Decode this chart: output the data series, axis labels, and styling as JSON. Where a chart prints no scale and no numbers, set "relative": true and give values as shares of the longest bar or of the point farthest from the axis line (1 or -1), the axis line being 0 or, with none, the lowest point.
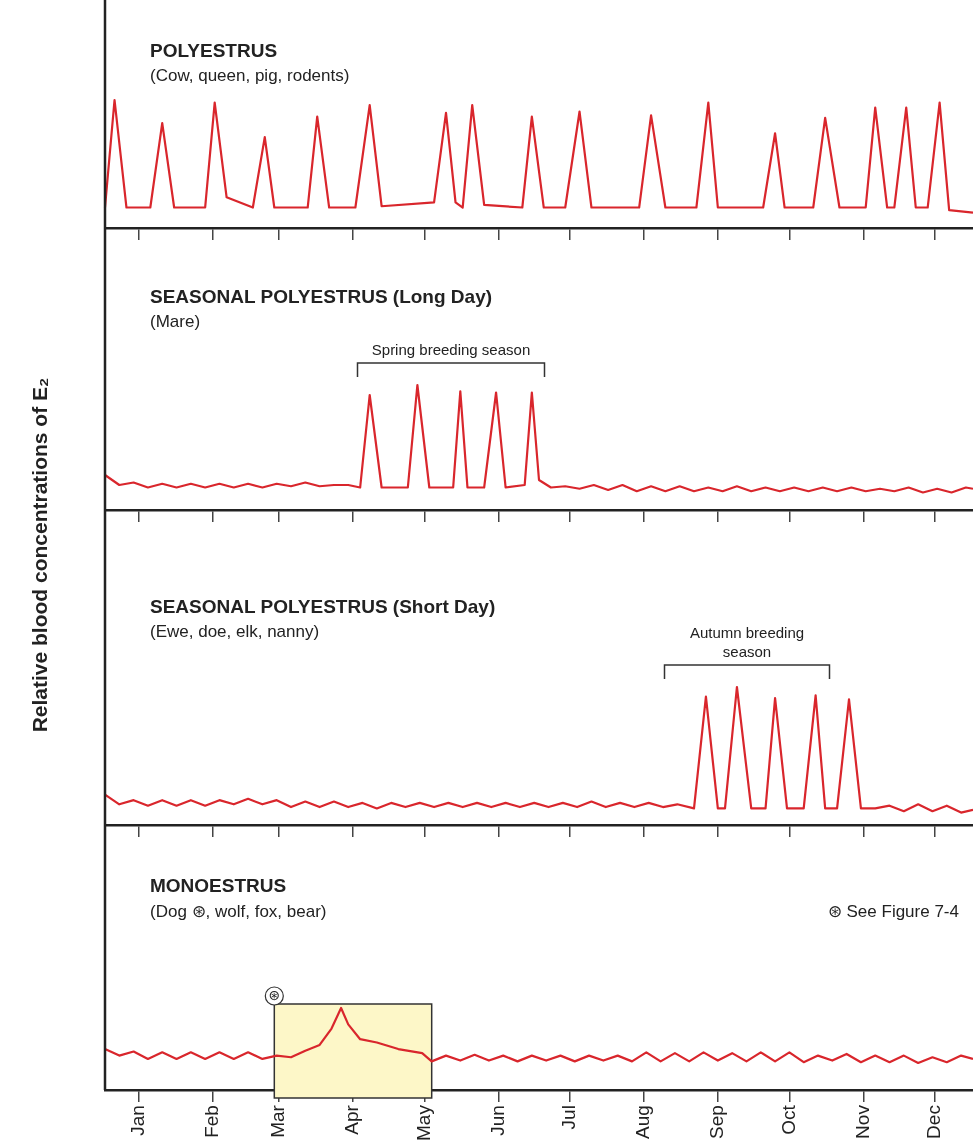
{
  "chart_data": [
    {
      "type": "line",
      "title": "POLYESTRUS",
      "subtitle": "(Cow, queen, pig, rodents)",
      "relative": true,
      "marker": "none",
      "tick_labels": false,
      "xlim": [
        "--01-01",
        "--12-31"
      ],
      "xticks": [
        {
          "value": "--01-15",
          "label": null
        },
        {
          "value": "--02-15",
          "label": null
        },
        {
          "value": "--03-15",
          "label": null
        },
        {
          "value": "--04-15",
          "label": null
        },
        {
          "value": "--05-15",
          "label": null
        },
        {
          "value": "--06-15",
          "label": null
        },
        {
          "value": "--07-15",
          "label": null
        },
        {
          "value": "--08-15",
          "label": null
        },
        {
          "value": "--09-15",
          "label": null
        },
        {
          "value": "--10-15",
          "label": null
        },
        {
          "value": "--11-15",
          "label": null
        },
        {
          "value": "--12-15",
          "label": null
        }
      ],
      "series": [
        {
          "color": "#d9262c",
          "x": [
            "--01-01",
            "--01-05",
            "--01-10",
            "--01-20",
            "--01-25",
            "--01-30",
            "--02-12",
            "--02-16",
            "--02-21",
            "--03-04",
            "--03-09",
            "--03-13",
            "--03-27",
            "--03-31",
            "--04-05",
            "--04-16",
            "--04-22",
            "--04-27",
            "--05-19",
            "--05-24",
            "--05-28",
            "--05-31",
            "--06-04",
            "--06-09",
            "--06-25",
            "--06-29",
            "--07-04",
            "--07-13",
            "--07-19",
            "--07-24",
            "--08-13",
            "--08-18",
            "--08-24",
            "--09-06",
            "--09-11",
            "--09-15",
            "--10-04",
            "--10-09",
            "--10-13",
            "--10-25",
            "--10-30",
            "--11-05",
            "--11-16",
            "--11-20",
            "--11-25",
            "--11-28",
            "--12-03",
            "--12-07",
            "--12-12",
            "--12-17",
            "--12-21",
            "--12-31"
          ],
          "values": [
            0.16,
            1.0,
            0.16,
            0.16,
            0.82,
            0.16,
            0.16,
            0.98,
            0.24,
            0.16,
            0.71,
            0.16,
            0.16,
            0.87,
            0.16,
            0.16,
            0.96,
            0.17,
            0.2,
            0.9,
            0.2,
            0.16,
            0.96,
            0.18,
            0.16,
            0.87,
            0.16,
            0.16,
            0.91,
            0.16,
            0.16,
            0.88,
            0.16,
            0.16,
            0.98,
            0.16,
            0.16,
            0.74,
            0.16,
            0.16,
            0.86,
            0.16,
            0.16,
            0.94,
            0.16,
            0.16,
            0.94,
            0.16,
            0.16,
            0.98,
            0.14,
            0.12
          ]
        }
      ]
    },
    {
      "type": "line",
      "title": "SEASONAL POLYESTRUS (Long Day)",
      "subtitle": "(Mare)",
      "relative": true,
      "marker": "none",
      "tick_labels": false,
      "xlim": [
        "--01-01",
        "--12-31"
      ],
      "xticks": [
        {
          "value": "--01-15",
          "label": null
        },
        {
          "value": "--02-15",
          "label": null
        },
        {
          "value": "--03-15",
          "label": null
        },
        {
          "value": "--04-15",
          "label": null
        },
        {
          "value": "--05-15",
          "label": null
        },
        {
          "value": "--06-15",
          "label": null
        },
        {
          "value": "--07-15",
          "label": null
        },
        {
          "value": "--08-15",
          "label": null
        },
        {
          "value": "--09-15",
          "label": null
        },
        {
          "value": "--10-15",
          "label": null
        },
        {
          "value": "--11-15",
          "label": null
        },
        {
          "value": "--12-15",
          "label": null
        }
      ],
      "annotations": [
        "Spring breeding season"
      ],
      "series": [
        {
          "color": "#d9262c",
          "x": [
            "--01-01",
            "--01-07",
            "--01-13",
            "--01-19",
            "--01-25",
            "--01-31",
            "--02-06",
            "--02-12",
            "--02-18",
            "--02-24",
            "--03-02",
            "--03-08",
            "--03-14",
            "--03-20",
            "--03-26",
            "--04-01",
            "--04-07",
            "--04-13",
            "--04-18",
            "--04-22",
            "--04-27",
            "--05-08",
            "--05-12",
            "--05-17",
            "--05-27",
            "--05-30",
            "--06-02",
            "--06-09",
            "--06-14",
            "--06-18",
            "--06-26",
            "--06-29",
            "--07-02",
            "--07-07",
            "--07-13",
            "--07-19",
            "--07-25",
            "--07-31",
            "--08-06",
            "--08-12",
            "--08-18",
            "--08-24",
            "--08-30",
            "--09-05",
            "--09-11",
            "--09-17",
            "--09-23",
            "--09-29",
            "--10-05",
            "--10-11",
            "--10-17",
            "--10-23",
            "--10-29",
            "--11-04",
            "--11-10",
            "--11-16",
            "--11-22",
            "--11-28",
            "--12-04",
            "--12-10",
            "--12-16",
            "--12-22",
            "--12-28",
            "--12-31"
          ],
          "values": [
            0.28,
            0.2,
            0.22,
            0.18,
            0.21,
            0.18,
            0.21,
            0.18,
            0.21,
            0.18,
            0.21,
            0.18,
            0.21,
            0.19,
            0.22,
            0.19,
            0.2,
            0.2,
            0.18,
            0.92,
            0.18,
            0.18,
            1.0,
            0.18,
            0.18,
            0.95,
            0.18,
            0.18,
            0.94,
            0.18,
            0.2,
            0.94,
            0.24,
            0.18,
            0.19,
            0.17,
            0.2,
            0.16,
            0.2,
            0.15,
            0.19,
            0.15,
            0.19,
            0.15,
            0.18,
            0.15,
            0.19,
            0.15,
            0.18,
            0.15,
            0.18,
            0.15,
            0.18,
            0.15,
            0.18,
            0.15,
            0.17,
            0.15,
            0.18,
            0.14,
            0.17,
            0.14,
            0.18,
            0.17
          ]
        }
      ]
    },
    {
      "type": "line",
      "title": "SEASONAL POLYESTRUS (Short Day)",
      "subtitle": "(Ewe, doe, elk, nanny)",
      "relative": true,
      "marker": "none",
      "tick_labels": false,
      "xlim": [
        "--01-01",
        "--12-31"
      ],
      "xticks": [
        {
          "value": "--01-15",
          "label": null
        },
        {
          "value": "--02-15",
          "label": null
        },
        {
          "value": "--03-15",
          "label": null
        },
        {
          "value": "--04-15",
          "label": null
        },
        {
          "value": "--05-15",
          "label": null
        },
        {
          "value": "--06-15",
          "label": null
        },
        {
          "value": "--07-15",
          "label": null
        },
        {
          "value": "--08-15",
          "label": null
        },
        {
          "value": "--09-15",
          "label": null
        },
        {
          "value": "--10-15",
          "label": null
        },
        {
          "value": "--11-15",
          "label": null
        },
        {
          "value": "--12-15",
          "label": null
        }
      ],
      "annotations": [
        "Autumn breeding season"
      ],
      "ylabel": "Relative blood concentrations of E₂",
      "series": [
        {
          "color": "#d9262c",
          "x": [
            "--01-01",
            "--01-07",
            "--01-13",
            "--01-19",
            "--01-25",
            "--01-31",
            "--02-06",
            "--02-12",
            "--02-18",
            "--02-24",
            "--03-02",
            "--03-08",
            "--03-14",
            "--03-20",
            "--03-26",
            "--04-01",
            "--04-07",
            "--04-13",
            "--04-19",
            "--04-25",
            "--05-01",
            "--05-07",
            "--05-13",
            "--05-19",
            "--05-25",
            "--05-31",
            "--06-06",
            "--06-12",
            "--06-18",
            "--06-24",
            "--06-30",
            "--07-06",
            "--07-12",
            "--07-18",
            "--07-24",
            "--07-30",
            "--08-05",
            "--08-11",
            "--08-17",
            "--08-23",
            "--08-29",
            "--09-05",
            "--09-10",
            "--09-15",
            "--09-18",
            "--09-23",
            "--09-29",
            "--10-05",
            "--10-09",
            "--10-14",
            "--10-21",
            "--10-26",
            "--10-30",
            "--11-04",
            "--11-09",
            "--11-14",
            "--11-20",
            "--11-26",
            "--12-02",
            "--12-08",
            "--12-14",
            "--12-20",
            "--12-26",
            "--12-31"
          ],
          "values": [
            0.22,
            0.15,
            0.18,
            0.14,
            0.18,
            0.14,
            0.18,
            0.14,
            0.18,
            0.15,
            0.19,
            0.15,
            0.18,
            0.13,
            0.17,
            0.13,
            0.17,
            0.13,
            0.16,
            0.12,
            0.16,
            0.13,
            0.16,
            0.13,
            0.16,
            0.13,
            0.16,
            0.13,
            0.16,
            0.13,
            0.16,
            0.13,
            0.16,
            0.13,
            0.17,
            0.13,
            0.16,
            0.13,
            0.16,
            0.13,
            0.15,
            0.12,
            0.93,
            0.12,
            0.12,
            1.0,
            0.12,
            0.12,
            0.92,
            0.12,
            0.12,
            0.94,
            0.12,
            0.12,
            0.91,
            0.12,
            0.12,
            0.14,
            0.1,
            0.15,
            0.1,
            0.14,
            0.09,
            0.11
          ]
        }
      ]
    },
    {
      "type": "line",
      "title": "MONOESTRUS",
      "subtitle": "(Dog ⊛, wolf, fox, bear)",
      "annotations": [
        "⊛ See Figure 7-4"
      ],
      "relative": true,
      "marker": "none",
      "tick_labels": "x",
      "xlim": [
        "--01-01",
        "--12-31"
      ],
      "xticks": [
        {
          "value": "--01-15",
          "label": "Jan"
        },
        {
          "value": "--02-15",
          "label": "Feb"
        },
        {
          "value": "--03-15",
          "label": "Mar"
        },
        {
          "value": "--04-15",
          "label": "Apr"
        },
        {
          "value": "--05-15",
          "label": "May"
        },
        {
          "value": "--06-15",
          "label": "Jun"
        },
        {
          "value": "--07-15",
          "label": "Jul"
        },
        {
          "value": "--08-15",
          "label": "Aug"
        },
        {
          "value": "--09-15",
          "label": "Sep"
        },
        {
          "value": "--10-15",
          "label": "Oct"
        },
        {
          "value": "--11-15",
          "label": "Nov"
        },
        {
          "value": "--12-15",
          "label": "Dec"
        }
      ],
      "bands": [
        {
          "axis": "x",
          "from": "--03-13",
          "to": "--05-18",
          "label": "⊛",
          "color": "#fdf7c8"
        }
      ],
      "series": [
        {
          "color": "#d9262c",
          "x": [
            "--01-01",
            "--01-07",
            "--01-13",
            "--01-19",
            "--01-25",
            "--01-31",
            "--02-06",
            "--02-12",
            "--02-18",
            "--02-24",
            "--03-02",
            "--03-08",
            "--03-14",
            "--03-20",
            "--03-26",
            "--04-01",
            "--04-06",
            "--04-10",
            "--04-13",
            "--04-18",
            "--04-25",
            "--05-04",
            "--05-14",
            "--05-18",
            "--05-24",
            "--05-30",
            "--06-05",
            "--06-11",
            "--06-17",
            "--06-23",
            "--06-29",
            "--07-05",
            "--07-11",
            "--07-17",
            "--07-23",
            "--07-29",
            "--08-04",
            "--08-10",
            "--08-16",
            "--08-22",
            "--08-28",
            "--09-03",
            "--09-09",
            "--09-15",
            "--09-21",
            "--09-27",
            "--10-03",
            "--10-09",
            "--10-15",
            "--10-21",
            "--10-27",
            "--11-02",
            "--11-08",
            "--11-14",
            "--11-20",
            "--11-26",
            "--12-02",
            "--12-08",
            "--12-14",
            "--12-20",
            "--12-26",
            "--12-31"
          ],
          "values": [
            0.5,
            0.42,
            0.47,
            0.38,
            0.46,
            0.38,
            0.46,
            0.38,
            0.46,
            0.38,
            0.46,
            0.38,
            0.42,
            0.4,
            0.48,
            0.55,
            0.75,
            1.0,
            0.8,
            0.62,
            0.58,
            0.5,
            0.45,
            0.35,
            0.42,
            0.36,
            0.43,
            0.36,
            0.42,
            0.35,
            0.42,
            0.36,
            0.42,
            0.35,
            0.42,
            0.36,
            0.42,
            0.35,
            0.46,
            0.35,
            0.45,
            0.35,
            0.46,
            0.36,
            0.45,
            0.35,
            0.46,
            0.35,
            0.46,
            0.34,
            0.42,
            0.36,
            0.44,
            0.34,
            0.42,
            0.34,
            0.42,
            0.33,
            0.4,
            0.34,
            0.42,
            0.38
          ]
        }
      ]
    }
  ]
}
